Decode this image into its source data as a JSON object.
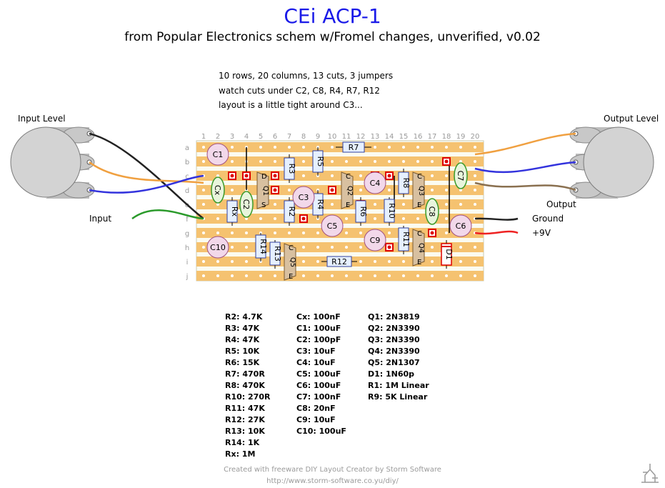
{
  "title": "CEi ACP-1",
  "subtitle": "from Popular Electronics schem w/Fromel changes, unverified, v0.02",
  "notes": [
    "10 rows, 20 columns, 13 cuts, 3 jumpers",
    "watch cuts under C2, C8, R4, R7, R12",
    "layout is a little tight around C3..."
  ],
  "labels": {
    "input_level": "Input Level",
    "output_level": "Output Level",
    "input": "Input",
    "output": "Output",
    "ground": "Ground",
    "supply": "+9V",
    "pot_left": "R1",
    "pot_right": "R9"
  },
  "board": {
    "columns": [
      "1",
      "2",
      "3",
      "4",
      "5",
      "6",
      "7",
      "8",
      "9",
      "10",
      "11",
      "12",
      "13",
      "14",
      "15",
      "16",
      "17",
      "18",
      "19",
      "20"
    ],
    "rows": [
      "a",
      "b",
      "c",
      "d",
      "e",
      "f",
      "g",
      "h",
      "i",
      "j"
    ]
  },
  "components": {
    "capacitors": [
      "C1",
      "Cx",
      "C2",
      "C3",
      "C4",
      "C5",
      "C6",
      "C7",
      "C8",
      "C9",
      "C10"
    ],
    "resistors": [
      "R7",
      "R3",
      "R5",
      "R8",
      "Rx",
      "R2",
      "R4",
      "R6",
      "R10",
      "R14",
      "R13",
      "R11",
      "R12"
    ],
    "transistors": [
      "Q1",
      "Q2",
      "Q3",
      "Q4",
      "Q5"
    ],
    "diodes": [
      "D1"
    ]
  },
  "parts_list": {
    "col1": [
      "R2: 4.7K",
      "R3: 47K",
      "R4: 47K",
      "R5: 10K",
      "R6: 15K",
      "R7: 470R",
      "R8: 470K",
      "R10: 270R",
      "R11: 47K",
      "R12: 27K",
      "R13: 10K",
      "R14: 1K",
      "Rx: 1M"
    ],
    "col2": [
      "Cx: 100nF",
      "C1: 100uF",
      "C2: 100pF",
      "C3: 10uF",
      "C4: 10uF",
      "C5: 100uF",
      "C6: 100uF",
      "C7: 100nF",
      "C8: 20nF",
      "C9: 10uF",
      "C10: 100uF"
    ],
    "col3": [
      "Q1: 2N3819",
      "Q2: 2N3390",
      "Q3: 2N3390",
      "Q4: 2N3390",
      "Q5: 2N1307",
      "D1: 1N60p",
      "R1: 1M Linear",
      "R9: 5K Linear"
    ]
  },
  "footer": {
    "line1": "Created with freeware DIY Layout Creator by Storm Software",
    "line2": "http://www.storm-software.co.yu/diy/"
  }
}
